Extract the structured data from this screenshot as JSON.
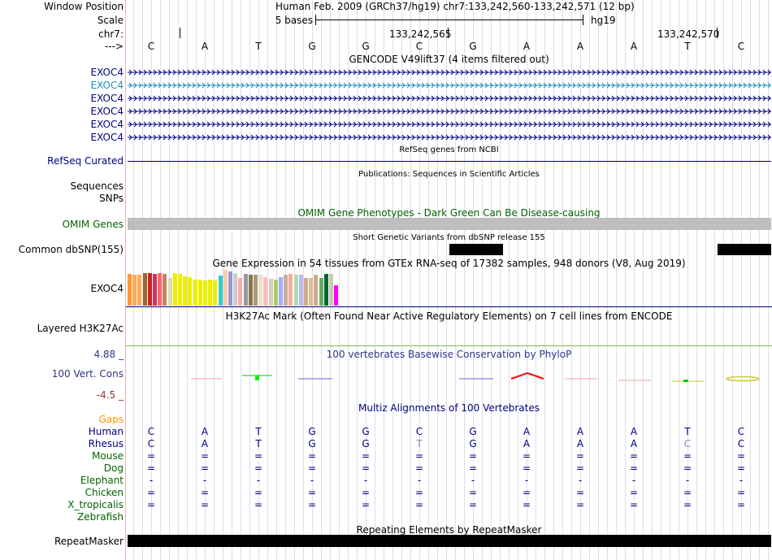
{
  "header": {
    "window_position_label": "Window Position",
    "window_position_value": "Human Feb. 2009 (GRCh37/hg19)   chr7:133,242,560-133,242,571 (12 bp)",
    "scale_label": "Scale",
    "scale_bases": "5 bases",
    "scale_assembly": "hg19",
    "chrom_label": "chr7:",
    "coord1": "133,242,565",
    "coord2": "133,242,570",
    "strand_label": "--->"
  },
  "sequence": [
    "C",
    "A",
    "T",
    "G",
    "G",
    "C",
    "G",
    "A",
    "A",
    "A",
    "T",
    "C"
  ],
  "gencode": {
    "title": "GENCODE V49lift37 (4 items filtered out)",
    "items": [
      {
        "label": "EXOC4",
        "color": "#000080"
      },
      {
        "label": "EXOC4",
        "color": "#1e8cb4"
      },
      {
        "label": "EXOC4",
        "color": "#000080"
      },
      {
        "label": "EXOC4",
        "color": "#000080"
      },
      {
        "label": "EXOC4",
        "color": "#000080"
      },
      {
        "label": "EXOC4",
        "color": "#000080"
      }
    ]
  },
  "refseq": {
    "title": "RefSeq genes from NCBI",
    "label": "RefSeq Curated"
  },
  "publications": {
    "title": "Publications: Sequences in Scientific Articles",
    "label1": "Sequences",
    "label2": "SNPs"
  },
  "omim": {
    "title": "OMIM Gene Phenotypes - Dark Green Can Be Disease-causing",
    "label": "OMIM Genes"
  },
  "dbsnp": {
    "title": "Short Genetic Variants from dbSNP release 155",
    "label": "Common dbSNP(155)"
  },
  "gtex": {
    "title": "Gene Expression in 54 tissues from GTEx RNA-seq of 17382 samples, 948 donors (V8, Aug 2019)",
    "label": "EXOC4",
    "bars": [
      {
        "color": "#ff9933",
        "value": 0.88
      },
      {
        "color": "#ffaa55",
        "value": 0.86
      },
      {
        "color": "#ffaa55",
        "value": 0.86
      },
      {
        "color": "#996633",
        "value": 0.9
      },
      {
        "color": "#cc2222",
        "value": 0.92
      },
      {
        "color": "#cc3366",
        "value": 0.88
      },
      {
        "color": "#ff6666",
        "value": 0.9
      },
      {
        "color": "#bb8866",
        "value": 0.88
      },
      {
        "color": "#ddddaa",
        "value": 0.78
      },
      {
        "color": "#eeee00",
        "value": 0.9
      },
      {
        "color": "#eeee00",
        "value": 0.88
      },
      {
        "color": "#eeee00",
        "value": 0.82
      },
      {
        "color": "#eeee00",
        "value": 0.8
      },
      {
        "color": "#eeee00",
        "value": 0.72
      },
      {
        "color": "#eeee00",
        "value": 0.72
      },
      {
        "color": "#eeee00",
        "value": 0.7
      },
      {
        "color": "#eeee00",
        "value": 0.72
      },
      {
        "color": "#eeee00",
        "value": 0.7
      },
      {
        "color": "#33cccc",
        "value": 0.84
      },
      {
        "color": "#ffccaa",
        "value": 1.0
      },
      {
        "color": "#9999cc",
        "value": 0.95
      },
      {
        "color": "#cccccc",
        "value": 0.9
      },
      {
        "color": "#ffaaaa",
        "value": 0.78
      },
      {
        "color": "#999999",
        "value": 0.88
      },
      {
        "color": "#887755",
        "value": 0.86
      },
      {
        "color": "#aa9977",
        "value": 0.86
      },
      {
        "color": "#eeddcc",
        "value": 0.86
      },
      {
        "color": "#ffbbbb",
        "value": 0.8
      },
      {
        "color": "#ddccbb",
        "value": 0.74
      },
      {
        "color": "#aacc66",
        "value": 0.72
      },
      {
        "color": "#aaaaff",
        "value": 0.8
      },
      {
        "color": "#ccaa99",
        "value": 0.86
      },
      {
        "color": "#ffaa99",
        "value": 0.88
      },
      {
        "color": "#aaddaa",
        "value": 0.86
      },
      {
        "color": "#bbbbee",
        "value": 0.86
      },
      {
        "color": "#ccaa88",
        "value": 0.78
      },
      {
        "color": "#ddbb99",
        "value": 0.78
      },
      {
        "color": "#ccaa88",
        "value": 0.86
      },
      {
        "color": "#66aa66",
        "value": 0.78
      },
      {
        "color": "#006633",
        "value": 0.88
      },
      {
        "color": "#ccccaa",
        "value": 0.88
      },
      {
        "color": "#ff00ff",
        "value": 0.56
      }
    ]
  },
  "h3k27ac": {
    "title": "H3K27Ac Mark (Often Found Near Active Regulatory Elements) on 7 cell lines from ENCODE",
    "label": "Layered H3K27Ac"
  },
  "phylop": {
    "title": "100 vertebrates Basewise Conservation by PhyloP",
    "label": "100 Vert. Cons",
    "max": "4.88 _",
    "min": "-4.5 _"
  },
  "multiz": {
    "title": "Multiz Alignments of 100 Vertebrates",
    "gaps_label": "Gaps",
    "species": [
      {
        "name": "Human",
        "color": "#000080",
        "seq": [
          "C",
          "A",
          "T",
          "G",
          "G",
          "C",
          "G",
          "A",
          "A",
          "A",
          "T",
          "C"
        ]
      },
      {
        "name": "Rhesus",
        "color": "#000080",
        "seq": [
          "C",
          "A",
          "T",
          "G",
          "G",
          "T",
          "G",
          "A",
          "A",
          "A",
          "C",
          "C"
        ]
      },
      {
        "name": "Mouse",
        "color": "#006400",
        "seq": [
          "=",
          "=",
          "=",
          "=",
          "=",
          "=",
          "=",
          "=",
          "=",
          "=",
          "=",
          "="
        ]
      },
      {
        "name": "Dog",
        "color": "#006400",
        "seq": [
          "=",
          "=",
          "=",
          "=",
          "=",
          "=",
          "=",
          "=",
          "=",
          "=",
          "=",
          "="
        ]
      },
      {
        "name": "Elephant",
        "color": "#006400",
        "seq": [
          "-",
          "-",
          "-",
          "-",
          "-",
          "-",
          "-",
          "-",
          "-",
          "-",
          "-",
          "-"
        ]
      },
      {
        "name": "Chicken",
        "color": "#006400",
        "seq": [
          "=",
          "=",
          "=",
          "=",
          "=",
          "=",
          "=",
          "=",
          "=",
          "=",
          "=",
          "="
        ]
      },
      {
        "name": "X_tropicalis",
        "color": "#006400",
        "seq": [
          "=",
          "=",
          "=",
          "=",
          "=",
          "=",
          "=",
          "=",
          "=",
          "=",
          "=",
          "="
        ]
      },
      {
        "name": "Zebrafish",
        "color": "#006400",
        "seq": [
          "",
          "",
          "",
          "",
          "",
          "",
          "",
          "",
          "",
          "",
          "",
          ""
        ]
      }
    ]
  },
  "repeatmasker": {
    "title": "Repeating Elements by RepeatMasker",
    "label": "RepeatMasker"
  }
}
